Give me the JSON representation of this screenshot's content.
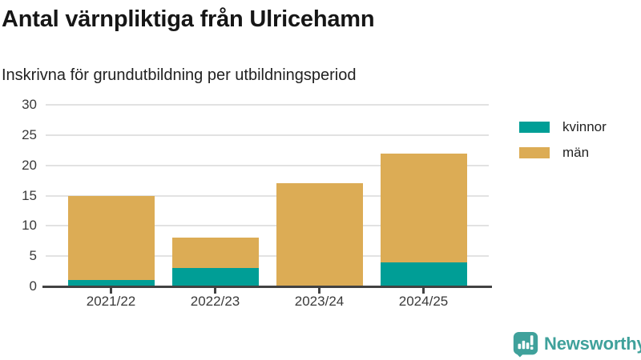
{
  "chart": {
    "title": "Antal värnpliktiga från Ulricehamn",
    "subtitle": "Inskrivna för grundutbildning per utbildningsperiod"
  },
  "chart_data": {
    "type": "bar",
    "stacked": true,
    "title": "Antal värnpliktiga från Ulricehamn",
    "subtitle": "Inskrivna för grundutbildning per utbildningsperiod",
    "categories": [
      "2021/22",
      "2022/23",
      "2023/24",
      "2024/25"
    ],
    "series": [
      {
        "name": "kvinnor",
        "color": "#009e96",
        "values": [
          1,
          3,
          0,
          4
        ]
      },
      {
        "name": "män",
        "color": "#dcac55",
        "values": [
          14,
          5,
          17,
          18
        ]
      }
    ],
    "totals": [
      15,
      8,
      17,
      22
    ],
    "xlabel": "",
    "ylabel": "",
    "ylim": [
      0,
      30
    ],
    "yticks": [
      0,
      5,
      10,
      15,
      20,
      25,
      30
    ],
    "grid": true,
    "legend_position": "right"
  },
  "colors": {
    "kvinnor": "#009e96",
    "man": "#dcac55",
    "axis": "#424242",
    "gridline": "#e2e2e2",
    "text": "#222222",
    "brand_teal": "#3fa19b"
  },
  "branding": {
    "logo_text": "Newsworthy",
    "logo_icon": "newsworthy-bubble-barchart-icon"
  }
}
